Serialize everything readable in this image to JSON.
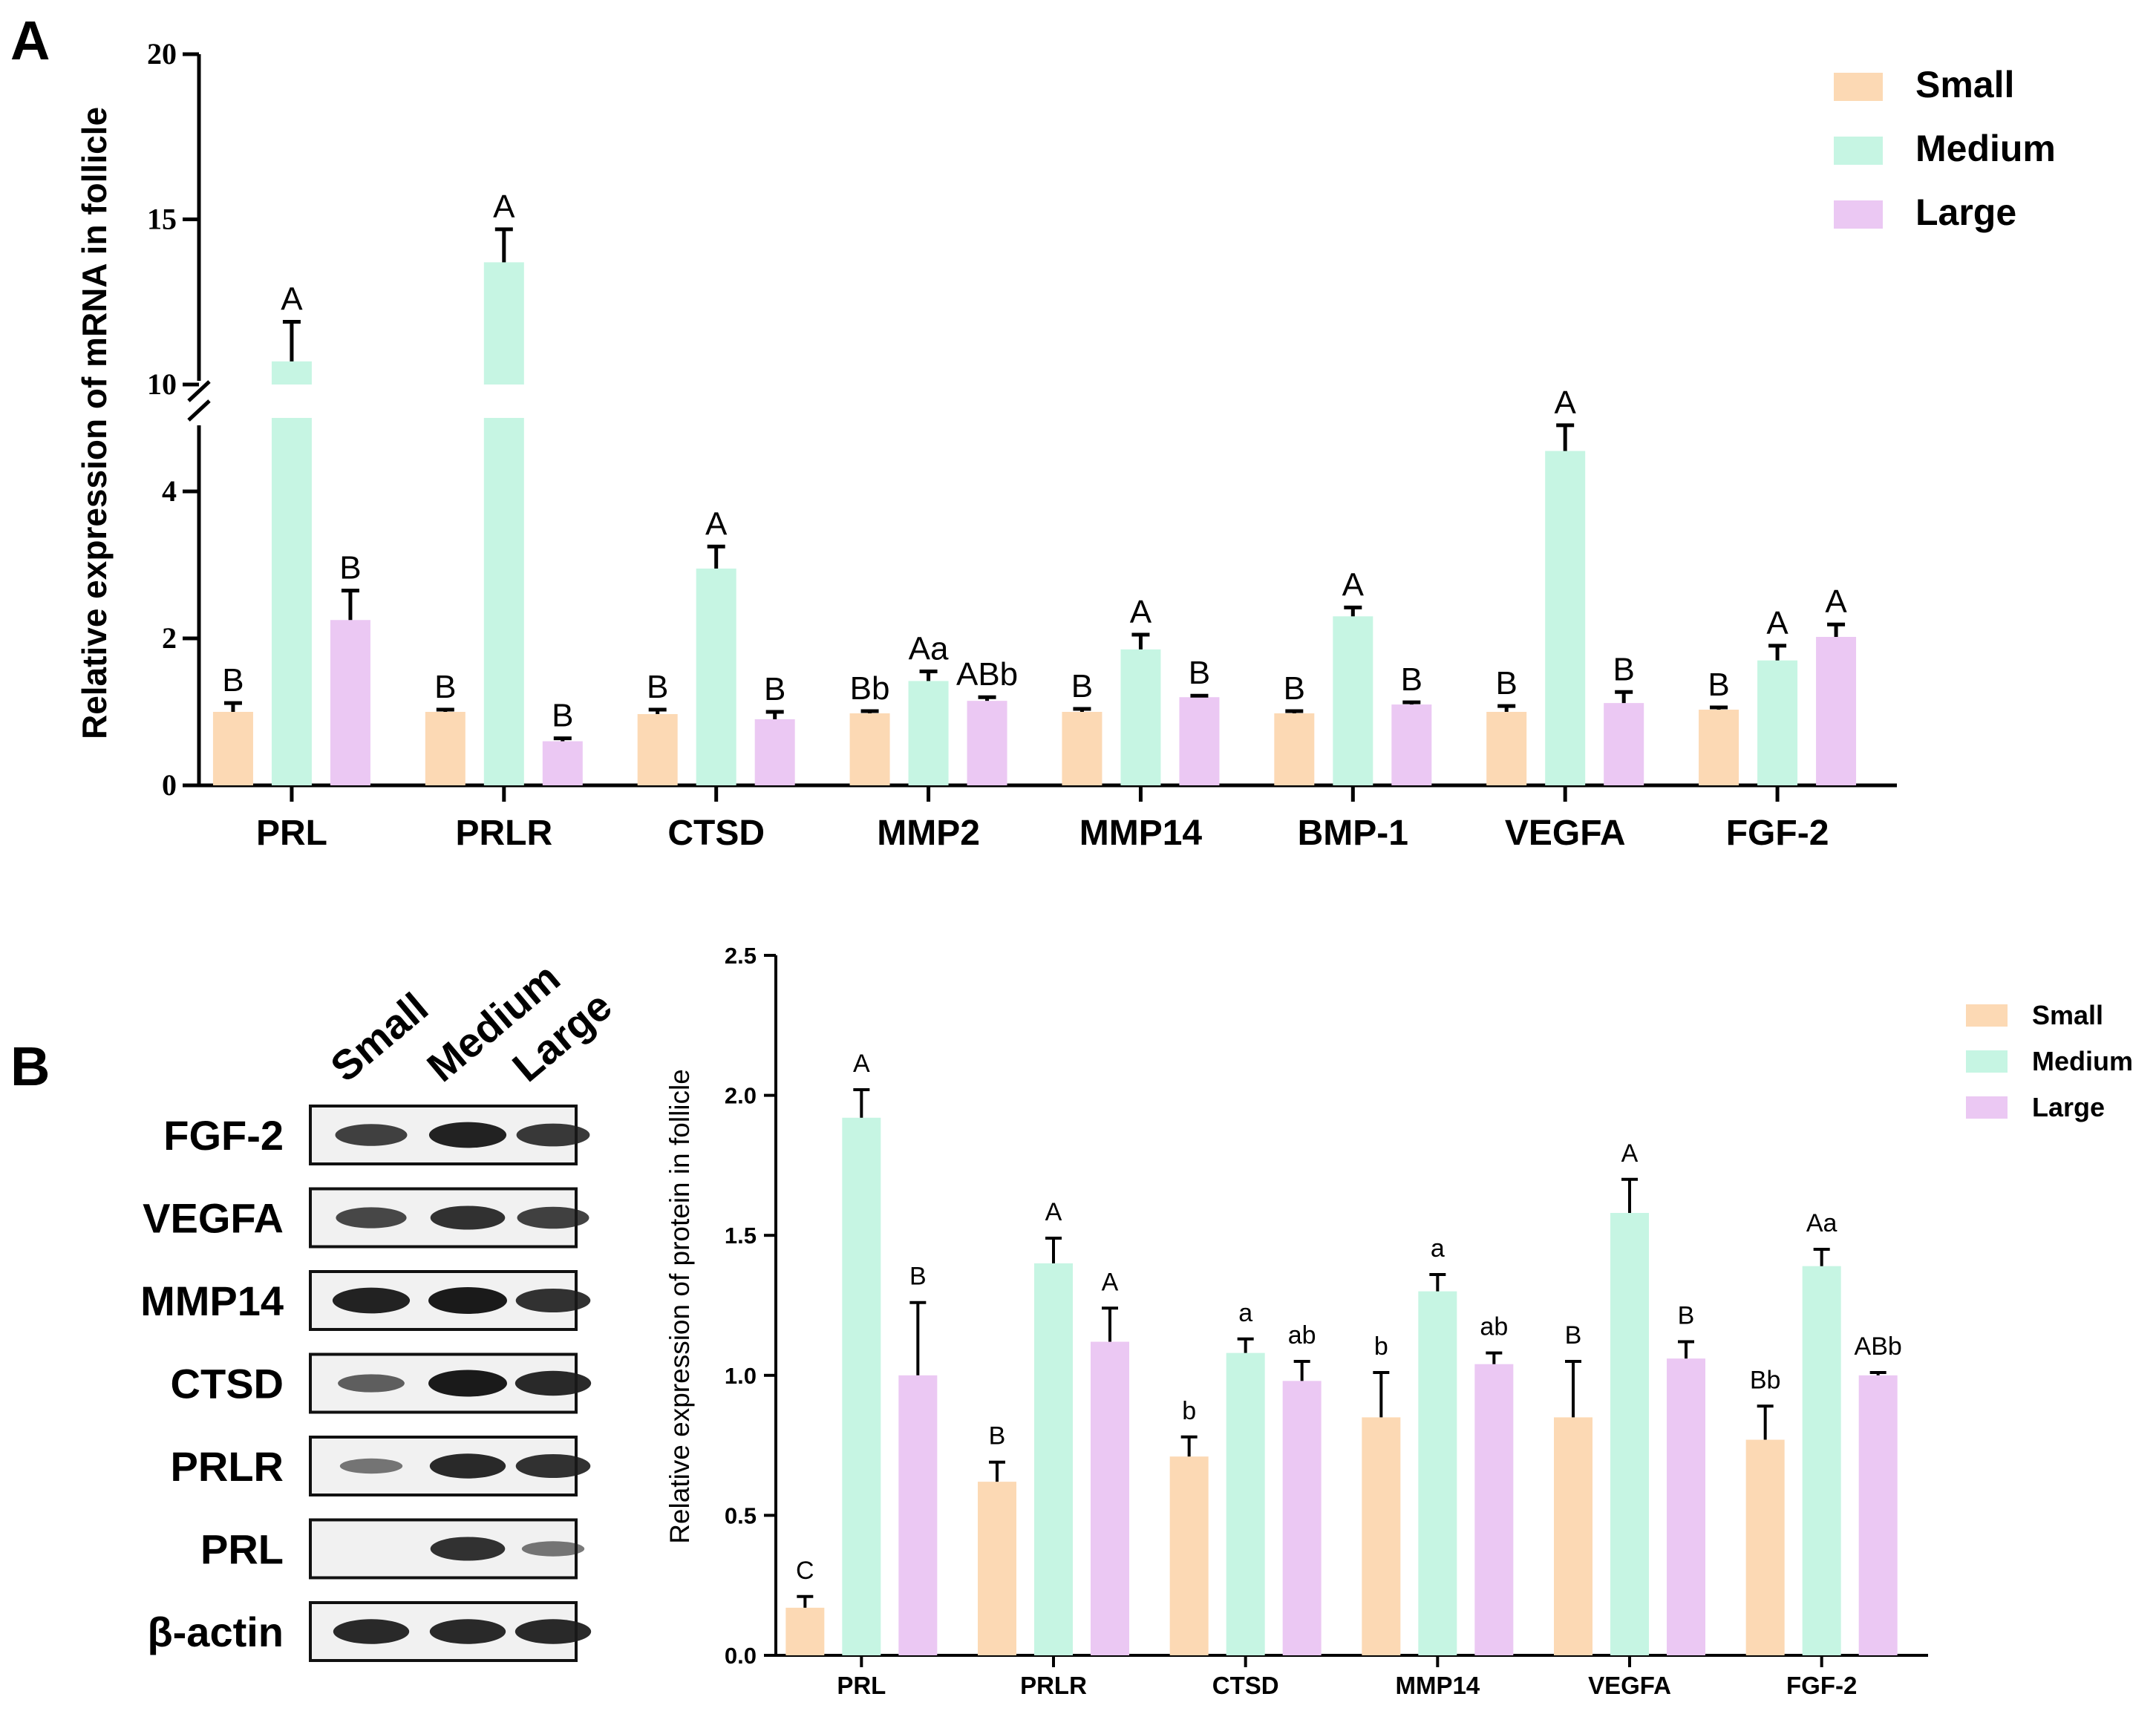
{
  "panel_a": {
    "label": "A",
    "chart_data": {
      "type": "bar",
      "title": "",
      "xlabel": "",
      "ylabel": "Relative expression of mRNA in follicle",
      "axis_break": {
        "lower_range": [
          0,
          5
        ],
        "upper_range": [
          10,
          20
        ]
      },
      "ylim": [
        0,
        20
      ],
      "yticks": [
        "0",
        "2",
        "4",
        "10",
        "15",
        "20"
      ],
      "categories": [
        "PRL",
        "PRLR",
        "CTSD",
        "MMP2",
        "MMP14",
        "BMP-1",
        "VEGFA",
        "FGF-2"
      ],
      "series": [
        {
          "name": "Small",
          "values": [
            1.0,
            1.0,
            0.97,
            0.98,
            1.0,
            0.98,
            1.0,
            1.03
          ],
          "errors": [
            0.12,
            0.03,
            0.06,
            0.03,
            0.04,
            0.03,
            0.08,
            0.03
          ],
          "letters": [
            "B",
            "B",
            "B",
            "Bb",
            "B",
            "B",
            "B",
            "B"
          ]
        },
        {
          "name": "Medium",
          "values": [
            10.7,
            13.7,
            2.95,
            1.42,
            1.85,
            2.3,
            4.55,
            1.7
          ],
          "errors": [
            1.2,
            1.0,
            0.3,
            0.13,
            0.2,
            0.12,
            0.35,
            0.2
          ],
          "letters": [
            "A",
            "A",
            "A",
            "Aa",
            "A",
            "A",
            "A",
            "A"
          ]
        },
        {
          "name": "Large",
          "values": [
            2.25,
            0.6,
            0.9,
            1.15,
            1.2,
            1.1,
            1.12,
            2.02
          ],
          "errors": [
            0.4,
            0.04,
            0.1,
            0.05,
            0.02,
            0.03,
            0.15,
            0.17
          ],
          "letters": [
            "B",
            "B",
            "B",
            "ABb",
            "B",
            "B",
            "B",
            "A"
          ]
        }
      ],
      "legend": [
        "Small",
        "Medium",
        "Large"
      ],
      "legend_position": "top-right"
    }
  },
  "panel_b": {
    "label": "B",
    "blot": {
      "columns": [
        "Small",
        "Medium",
        "Large"
      ],
      "rows": [
        {
          "label": "FGF-2",
          "intensity": [
            0.75,
            0.95,
            0.8
          ]
        },
        {
          "label": "VEGFA",
          "intensity": [
            0.7,
            0.85,
            0.75
          ]
        },
        {
          "label": "MMP14",
          "intensity": [
            0.95,
            1.0,
            0.85
          ]
        },
        {
          "label": "CTSD",
          "intensity": [
            0.55,
            1.0,
            0.9
          ]
        },
        {
          "label": "PRLR",
          "intensity": [
            0.4,
            0.9,
            0.85
          ]
        },
        {
          "label": "PRL",
          "intensity": [
            0.03,
            0.85,
            0.4
          ]
        },
        {
          "label": "β-actin",
          "intensity": [
            0.9,
            0.9,
            0.9
          ]
        }
      ]
    },
    "chart_data": {
      "type": "bar",
      "title": "",
      "xlabel": "",
      "ylabel": "Relative expression of protein in follicle",
      "ylim": [
        0,
        2.5
      ],
      "yticks": [
        "0.0",
        "0.5",
        "1.0",
        "1.5",
        "2.0",
        "2.5"
      ],
      "categories": [
        "PRL",
        "PRLR",
        "CTSD",
        "MMP14",
        "VEGFA",
        "FGF-2"
      ],
      "series": [
        {
          "name": "Small",
          "values": [
            0.17,
            0.62,
            0.71,
            0.85,
            0.85,
            0.77
          ],
          "errors": [
            0.04,
            0.07,
            0.07,
            0.16,
            0.2,
            0.12
          ],
          "letters": [
            "C",
            "B",
            "b",
            "b",
            "B",
            "Bb"
          ]
        },
        {
          "name": "Medium",
          "values": [
            1.92,
            1.4,
            1.08,
            1.3,
            1.58,
            1.39
          ],
          "errors": [
            0.1,
            0.09,
            0.05,
            0.06,
            0.12,
            0.06
          ],
          "letters": [
            "A",
            "A",
            "a",
            "a",
            "A",
            "Aa"
          ]
        },
        {
          "name": "Large",
          "values": [
            1.0,
            1.12,
            0.98,
            1.04,
            1.06,
            1.0
          ],
          "errors": [
            0.26,
            0.12,
            0.07,
            0.04,
            0.06,
            0.01
          ],
          "letters": [
            "B",
            "A",
            "ab",
            "ab",
            "B",
            "ABb"
          ]
        }
      ],
      "legend": [
        "Small",
        "Medium",
        "Large"
      ],
      "legend_position": "top-right"
    }
  },
  "colors": {
    "Small": "#fcd9b4",
    "Medium": "#c6f5e3",
    "Large": "#ebc8f3",
    "axis": "#000000",
    "band": "#1a1a1a"
  }
}
